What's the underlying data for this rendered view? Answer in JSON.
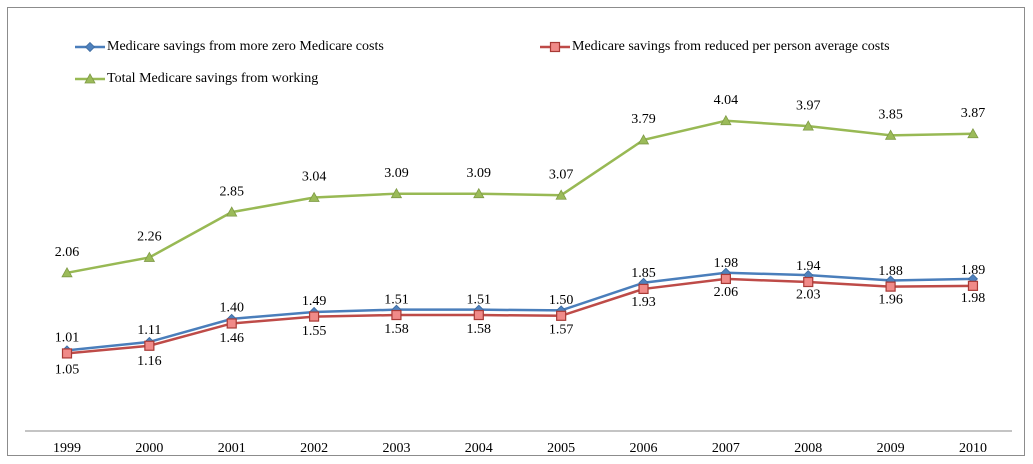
{
  "chart_data": {
    "type": "line",
    "categories": [
      "1999",
      "2000",
      "2001",
      "2002",
      "2003",
      "2004",
      "2005",
      "2006",
      "2007",
      "2008",
      "2009",
      "2010"
    ],
    "ylim": [
      0,
      5
    ],
    "series": [
      {
        "name": "Medicare savings from more zero Medicare costs",
        "color": "#4a7ebb",
        "marker": "diamond",
        "values": [
          1.05,
          1.16,
          1.46,
          1.55,
          1.58,
          1.58,
          1.57,
          1.93,
          2.06,
          2.03,
          1.96,
          1.98
        ],
        "value_labels": [
          "1.05",
          "1.16",
          "1.46",
          "1.55",
          "1.58",
          "1.58",
          "1.57",
          "1.93",
          "2.06",
          "2.03",
          "1.96",
          "1.98"
        ]
      },
      {
        "name": "Medicare savings from reduced per person average costs",
        "color": "#be4b48",
        "marker": "square",
        "values": [
          1.01,
          1.11,
          1.4,
          1.49,
          1.51,
          1.51,
          1.5,
          1.85,
          1.98,
          1.94,
          1.88,
          1.89
        ],
        "value_labels": [
          "1.01",
          "1.11",
          "1.40",
          "1.49",
          "1.51",
          "1.51",
          "1.50",
          "1.85",
          "1.98",
          "1.94",
          "1.88",
          "1.89"
        ]
      },
      {
        "name": "Total Medicare savings from working",
        "color": "#98b954",
        "marker": "triangle",
        "values": [
          2.06,
          2.26,
          2.85,
          3.04,
          3.09,
          3.09,
          3.07,
          3.79,
          4.04,
          3.97,
          3.85,
          3.87
        ],
        "value_labels": [
          "2.06",
          "2.26",
          "2.85",
          "3.04",
          "3.09",
          "3.09",
          "3.07",
          "3.79",
          "4.04",
          "3.97",
          "3.85",
          "3.87"
        ]
      }
    ]
  }
}
